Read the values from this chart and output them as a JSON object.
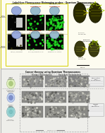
{
  "title_top": "Label-free Fluorescence Bioimaging probes - Quantum Theranosomes",
  "title_bottom": "Cancer therapy using Quantum Theranosomes",
  "fig_bg": "#f0ede8",
  "top_bg": "#fdfcf0",
  "top_border": "#d4d000",
  "bottom_bg": "#eeeeea",
  "bottom_border": "#aaaaaa",
  "green": "#22dd22",
  "black_panel": "#050505",
  "gray_panel": "#888880",
  "olive_dark": "#3a3a00",
  "olive_mid": "#5a5a10",
  "olive_light": "#888820",
  "white": "#ffffff",
  "text_dark": "#111111",
  "text_mid": "#444444",
  "text_light": "#666666",
  "yellow_arrow": "#cccc00",
  "cell_blue": "#99aadd",
  "cell_green": "#aaccaa",
  "cell_teal": "#88bbbb"
}
